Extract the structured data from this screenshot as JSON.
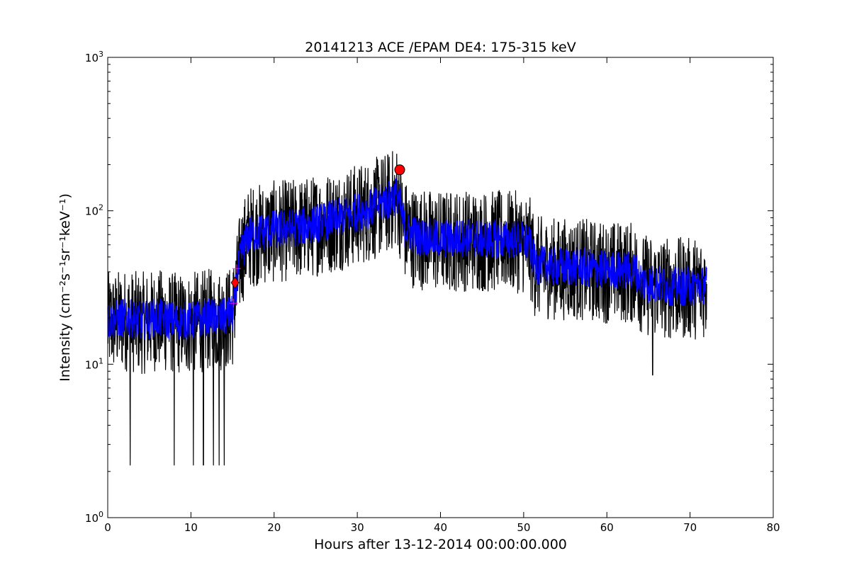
{
  "chart_data": {
    "type": "line",
    "title": "20141213 ACE /EPAM DE4: 175-315 keV",
    "xlabel": "Hours after 13-12-2014 00:00:00.000",
    "ylabel": "Intensity (cm⁻²s⁻¹sr⁻¹keV⁻¹)",
    "y_scale": "log",
    "xlim": [
      0,
      80
    ],
    "ylim": [
      1,
      1000
    ],
    "x_ticks": [
      0,
      10,
      20,
      30,
      40,
      50,
      60,
      70,
      80
    ],
    "x_tick_labels": [
      "0",
      "10",
      "20",
      "30",
      "40",
      "50",
      "60",
      "70",
      "80"
    ],
    "y_ticks": [
      1,
      10,
      100,
      1000
    ],
    "y_tick_labels": [
      {
        "base": "10",
        "exp": "0"
      },
      {
        "base": "10",
        "exp": "1"
      },
      {
        "base": "10",
        "exp": "2"
      },
      {
        "base": "10",
        "exp": "3"
      }
    ],
    "grid": false,
    "series": [
      {
        "color": "#000000",
        "x": [
          0,
          2,
          4,
          6,
          8,
          10,
          12,
          14,
          15,
          15.4,
          16,
          17,
          18,
          20,
          22,
          24,
          26,
          28,
          30,
          32,
          33,
          34,
          34.8,
          35.1,
          35.6,
          36.5,
          38,
          40,
          42,
          44,
          46,
          48,
          50,
          50.8,
          51.3,
          52,
          54,
          56,
          58,
          60,
          62,
          63.5,
          64.3,
          66,
          68,
          70,
          72
        ],
        "values": [
          19,
          20,
          19,
          20,
          19,
          19,
          20,
          20,
          21,
          30,
          52,
          70,
          72,
          75,
          77,
          80,
          85,
          90,
          97,
          105,
          112,
          118,
          128,
          110,
          78,
          70,
          67,
          65,
          66,
          66,
          65,
          65,
          64,
          58,
          45,
          44,
          43,
          43,
          42,
          41,
          41,
          40,
          34,
          33,
          32,
          32,
          33
        ],
        "noise_range": [
          0.45,
          2.1
        ],
        "min_dips": [
          {
            "x": 2.7,
            "y": 2.2
          },
          {
            "x": 8.0,
            "y": 2.2
          },
          {
            "x": 10.3,
            "y": 2.2
          },
          {
            "x": 11.5,
            "y": 2.2
          },
          {
            "x": 12.7,
            "y": 2.2
          },
          {
            "x": 13.4,
            "y": 2.2
          },
          {
            "x": 14.0,
            "y": 2.2
          },
          {
            "x": 65.5,
            "y": 8.5
          }
        ]
      },
      {
        "color": "#0000ff",
        "x": [
          0,
          2,
          4,
          6,
          8,
          10,
          12,
          14,
          15,
          15.4,
          16,
          17,
          18,
          20,
          22,
          24,
          26,
          28,
          30,
          32,
          33,
          34,
          34.8,
          35.1,
          35.6,
          36.5,
          38,
          40,
          42,
          44,
          46,
          48,
          50,
          50.8,
          51.3,
          52,
          54,
          56,
          58,
          60,
          62,
          63.5,
          64.3,
          66,
          68,
          70,
          72
        ],
        "values": [
          19,
          20,
          19,
          20,
          19,
          19,
          20,
          20,
          21,
          30,
          52,
          70,
          72,
          75,
          77,
          80,
          85,
          90,
          97,
          105,
          112,
          118,
          128,
          110,
          78,
          70,
          67,
          65,
          66,
          66,
          65,
          65,
          64,
          58,
          45,
          44,
          43,
          43,
          42,
          41,
          41,
          40,
          34,
          33,
          32,
          32,
          33
        ],
        "noise_range": [
          0.75,
          1.35
        ]
      }
    ],
    "markers": [
      {
        "shape": "diamond",
        "color": "#ff0000",
        "x": 15.3,
        "y": 34
      },
      {
        "shape": "circle",
        "color": "#ff0000",
        "x": 35.1,
        "y": 185
      },
      {
        "shape": "plus",
        "color": "#ff00ff",
        "x": 15.1,
        "y": 25
      },
      {
        "shape": "plus",
        "color": "#ff00ff",
        "x": 15.5,
        "y": 42
      }
    ]
  }
}
